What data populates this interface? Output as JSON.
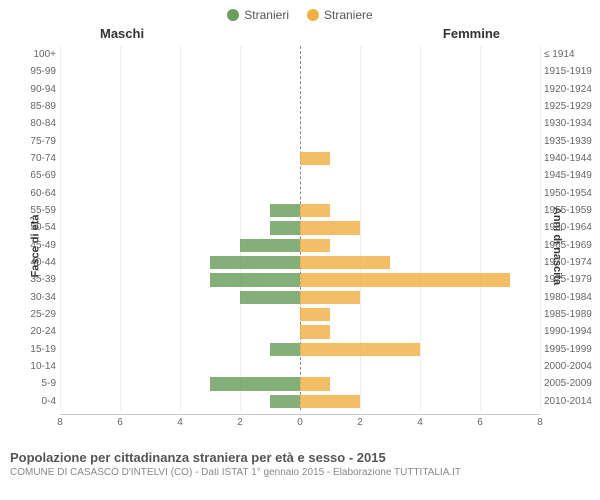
{
  "legend": {
    "male": {
      "label": "Stranieri",
      "color": "#6a9e5a"
    },
    "female": {
      "label": "Straniere",
      "color": "#f0b043"
    }
  },
  "headers": {
    "male": "Maschi",
    "female": "Femmine"
  },
  "axis_titles": {
    "left": "Fasce di età",
    "right": "Anni di nascita"
  },
  "chart": {
    "type": "population-pyramid",
    "xmax": 8,
    "xticks": [
      8,
      6,
      4,
      2,
      0,
      2,
      4,
      6,
      8
    ],
    "grid_color": "#eeeeee",
    "center_line_color": "#888888",
    "background_color": "#ffffff",
    "male_color": "#6a9e5a",
    "female_color": "#f0b043",
    "label_fontsize": 10,
    "rows": [
      {
        "age": "100+",
        "birth": "≤ 1914",
        "m": 0,
        "f": 0
      },
      {
        "age": "95-99",
        "birth": "1915-1919",
        "m": 0,
        "f": 0
      },
      {
        "age": "90-94",
        "birth": "1920-1924",
        "m": 0,
        "f": 0
      },
      {
        "age": "85-89",
        "birth": "1925-1929",
        "m": 0,
        "f": 0
      },
      {
        "age": "80-84",
        "birth": "1930-1934",
        "m": 0,
        "f": 0
      },
      {
        "age": "75-79",
        "birth": "1935-1939",
        "m": 0,
        "f": 0
      },
      {
        "age": "70-74",
        "birth": "1940-1944",
        "m": 0,
        "f": 1
      },
      {
        "age": "65-69",
        "birth": "1945-1949",
        "m": 0,
        "f": 0
      },
      {
        "age": "60-64",
        "birth": "1950-1954",
        "m": 0,
        "f": 0
      },
      {
        "age": "55-59",
        "birth": "1955-1959",
        "m": 1,
        "f": 1
      },
      {
        "age": "50-54",
        "birth": "1960-1964",
        "m": 1,
        "f": 2
      },
      {
        "age": "45-49",
        "birth": "1965-1969",
        "m": 2,
        "f": 1
      },
      {
        "age": "40-44",
        "birth": "1970-1974",
        "m": 3,
        "f": 3
      },
      {
        "age": "35-39",
        "birth": "1975-1979",
        "m": 3,
        "f": 7
      },
      {
        "age": "30-34",
        "birth": "1980-1984",
        "m": 2,
        "f": 2
      },
      {
        "age": "25-29",
        "birth": "1985-1989",
        "m": 0,
        "f": 1
      },
      {
        "age": "20-24",
        "birth": "1990-1994",
        "m": 0,
        "f": 1
      },
      {
        "age": "15-19",
        "birth": "1995-1999",
        "m": 1,
        "f": 4
      },
      {
        "age": "10-14",
        "birth": "2000-2004",
        "m": 0,
        "f": 0
      },
      {
        "age": "5-9",
        "birth": "2005-2009",
        "m": 3,
        "f": 1
      },
      {
        "age": "0-4",
        "birth": "2010-2014",
        "m": 1,
        "f": 2
      }
    ]
  },
  "footer": {
    "title": "Popolazione per cittadinanza straniera per età e sesso - 2015",
    "subtitle": "COMUNE DI CASASCO D'INTELVI (CO) - Dati ISTAT 1° gennaio 2015 - Elaborazione TUTTITALIA.IT"
  }
}
